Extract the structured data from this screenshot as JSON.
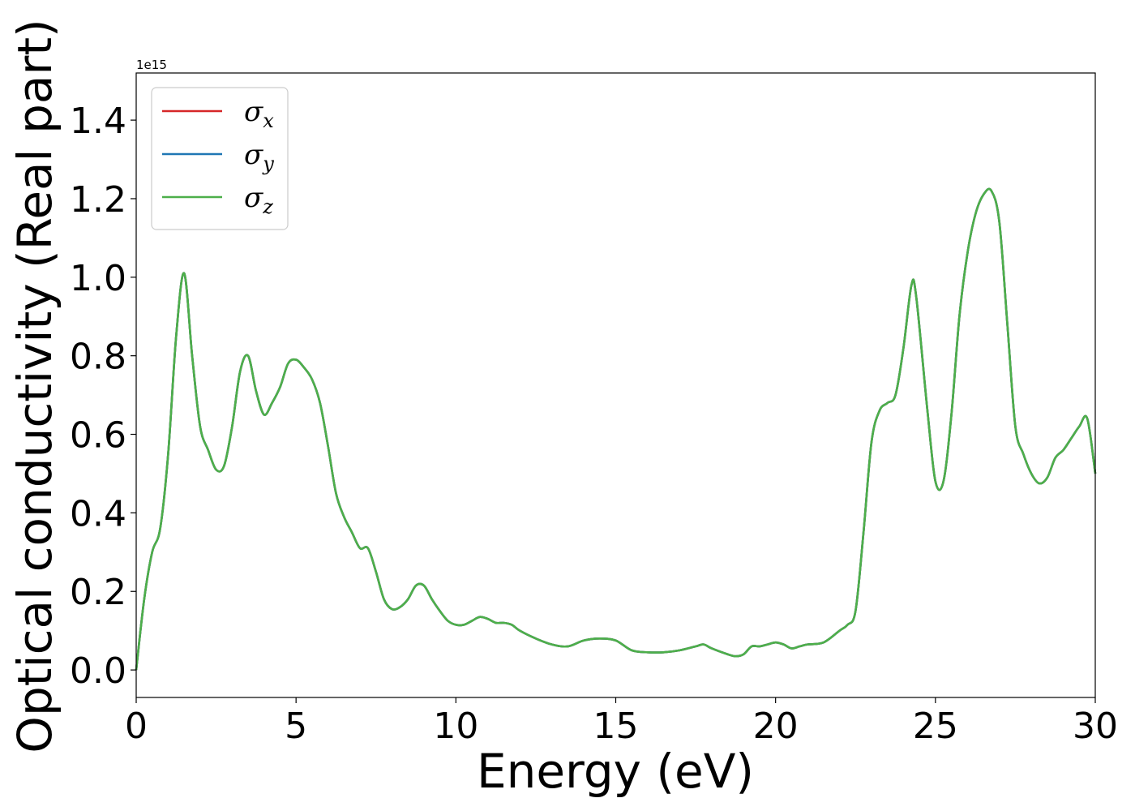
{
  "chart_data": {
    "type": "line",
    "xlabel": "Energy (eV)",
    "ylabel": "Optical conductivity (Real part)",
    "y_offset_label": "1e15",
    "xlim": [
      0,
      30
    ],
    "ylim": [
      -0.07,
      1.52
    ],
    "x_ticks": [
      0,
      5,
      10,
      15,
      20,
      25,
      30
    ],
    "y_ticks": [
      0.0,
      0.2,
      0.4,
      0.6,
      0.8,
      1.0,
      1.2,
      1.4
    ],
    "x_tick_labels": [
      "0",
      "5",
      "10",
      "15",
      "20",
      "25",
      "30"
    ],
    "y_tick_labels": [
      "0.0",
      "0.2",
      "0.4",
      "0.6",
      "0.8",
      "1.0",
      "1.2",
      "1.4"
    ],
    "grid": false,
    "legend_position": "top-left",
    "x": [
      0,
      0.25,
      0.5,
      0.75,
      1.0,
      1.25,
      1.5,
      1.75,
      2.0,
      2.25,
      2.5,
      2.75,
      3.0,
      3.25,
      3.5,
      3.75,
      4.0,
      4.25,
      4.5,
      4.75,
      5.0,
      5.25,
      5.5,
      5.75,
      6.0,
      6.25,
      6.5,
      6.75,
      7.0,
      7.25,
      7.5,
      7.75,
      8.0,
      8.25,
      8.5,
      8.75,
      9.0,
      9.25,
      9.5,
      9.75,
      10.0,
      10.25,
      10.5,
      10.75,
      11.0,
      11.25,
      11.5,
      11.75,
      12.0,
      12.5,
      13.0,
      13.5,
      14.0,
      14.5,
      15.0,
      15.5,
      16.0,
      16.5,
      17.0,
      17.5,
      17.75,
      18.0,
      18.5,
      18.75,
      19.0,
      19.25,
      19.5,
      19.75,
      20.0,
      20.25,
      20.5,
      20.75,
      21.0,
      21.5,
      22.0,
      22.25,
      22.5,
      22.75,
      23.0,
      23.25,
      23.5,
      23.75,
      24.0,
      24.25,
      24.4,
      24.75,
      25.0,
      25.25,
      25.5,
      25.75,
      26.0,
      26.25,
      26.5,
      26.75,
      27.0,
      27.25,
      27.5,
      27.75,
      28.0,
      28.25,
      28.5,
      28.75,
      29.0,
      29.25,
      29.5,
      29.75,
      30.0
    ],
    "series": [
      {
        "name": "σx",
        "color": "#d62728",
        "values": [
          0.0,
          0.18,
          0.3,
          0.36,
          0.55,
          0.85,
          1.01,
          0.8,
          0.62,
          0.56,
          0.51,
          0.52,
          0.62,
          0.76,
          0.8,
          0.71,
          0.65,
          0.68,
          0.72,
          0.78,
          0.79,
          0.77,
          0.74,
          0.68,
          0.57,
          0.45,
          0.39,
          0.35,
          0.31,
          0.31,
          0.25,
          0.18,
          0.155,
          0.16,
          0.18,
          0.215,
          0.215,
          0.18,
          0.15,
          0.125,
          0.115,
          0.115,
          0.125,
          0.135,
          0.13,
          0.12,
          0.12,
          0.115,
          0.1,
          0.08,
          0.065,
          0.06,
          0.075,
          0.08,
          0.075,
          0.05,
          0.045,
          0.045,
          0.05,
          0.06,
          0.065,
          0.055,
          0.04,
          0.035,
          0.04,
          0.06,
          0.06,
          0.065,
          0.07,
          0.065,
          0.055,
          0.06,
          0.065,
          0.07,
          0.1,
          0.115,
          0.15,
          0.35,
          0.58,
          0.66,
          0.68,
          0.7,
          0.82,
          0.98,
          0.95,
          0.66,
          0.48,
          0.48,
          0.65,
          0.9,
          1.06,
          1.16,
          1.21,
          1.22,
          1.14,
          0.88,
          0.62,
          0.55,
          0.5,
          0.475,
          0.49,
          0.54,
          0.56,
          0.59,
          0.62,
          0.64,
          0.5
        ]
      },
      {
        "name": "σy",
        "color": "#1f77b4",
        "values": [
          0.0,
          0.18,
          0.3,
          0.36,
          0.55,
          0.85,
          1.01,
          0.8,
          0.62,
          0.56,
          0.51,
          0.52,
          0.62,
          0.76,
          0.8,
          0.71,
          0.65,
          0.68,
          0.72,
          0.78,
          0.79,
          0.77,
          0.74,
          0.68,
          0.57,
          0.45,
          0.39,
          0.35,
          0.31,
          0.31,
          0.25,
          0.18,
          0.155,
          0.16,
          0.18,
          0.215,
          0.215,
          0.18,
          0.15,
          0.125,
          0.115,
          0.115,
          0.125,
          0.135,
          0.13,
          0.12,
          0.12,
          0.115,
          0.1,
          0.08,
          0.065,
          0.06,
          0.075,
          0.08,
          0.075,
          0.05,
          0.045,
          0.045,
          0.05,
          0.06,
          0.065,
          0.055,
          0.04,
          0.035,
          0.04,
          0.06,
          0.06,
          0.065,
          0.07,
          0.065,
          0.055,
          0.06,
          0.065,
          0.07,
          0.1,
          0.115,
          0.15,
          0.35,
          0.58,
          0.66,
          0.68,
          0.7,
          0.82,
          0.98,
          0.95,
          0.66,
          0.48,
          0.48,
          0.65,
          0.9,
          1.06,
          1.16,
          1.21,
          1.22,
          1.14,
          0.88,
          0.62,
          0.55,
          0.5,
          0.475,
          0.49,
          0.54,
          0.56,
          0.59,
          0.62,
          0.64,
          0.5
        ]
      },
      {
        "name": "σz",
        "color": "#4daf4a",
        "values": [
          0.0,
          0.18,
          0.3,
          0.36,
          0.55,
          0.85,
          1.01,
          0.8,
          0.62,
          0.56,
          0.51,
          0.52,
          0.62,
          0.76,
          0.8,
          0.71,
          0.65,
          0.68,
          0.72,
          0.78,
          0.79,
          0.77,
          0.74,
          0.68,
          0.57,
          0.45,
          0.39,
          0.35,
          0.31,
          0.31,
          0.25,
          0.18,
          0.155,
          0.16,
          0.18,
          0.215,
          0.215,
          0.18,
          0.15,
          0.125,
          0.115,
          0.115,
          0.125,
          0.135,
          0.13,
          0.12,
          0.12,
          0.115,
          0.1,
          0.08,
          0.065,
          0.06,
          0.075,
          0.08,
          0.075,
          0.05,
          0.045,
          0.045,
          0.05,
          0.06,
          0.065,
          0.055,
          0.04,
          0.035,
          0.04,
          0.06,
          0.06,
          0.065,
          0.07,
          0.065,
          0.055,
          0.06,
          0.065,
          0.07,
          0.1,
          0.115,
          0.15,
          0.35,
          0.58,
          0.66,
          0.68,
          0.7,
          0.82,
          0.98,
          0.95,
          0.66,
          0.48,
          0.48,
          0.65,
          0.9,
          1.06,
          1.16,
          1.21,
          1.22,
          1.14,
          0.88,
          0.62,
          0.55,
          0.5,
          0.475,
          0.49,
          0.54,
          0.56,
          0.59,
          0.62,
          0.64,
          0.5
        ]
      }
    ],
    "legend": [
      {
        "symbol": "σ",
        "subscript": "x"
      },
      {
        "symbol": "σ",
        "subscript": "y"
      },
      {
        "symbol": "σ",
        "subscript": "z"
      }
    ]
  }
}
